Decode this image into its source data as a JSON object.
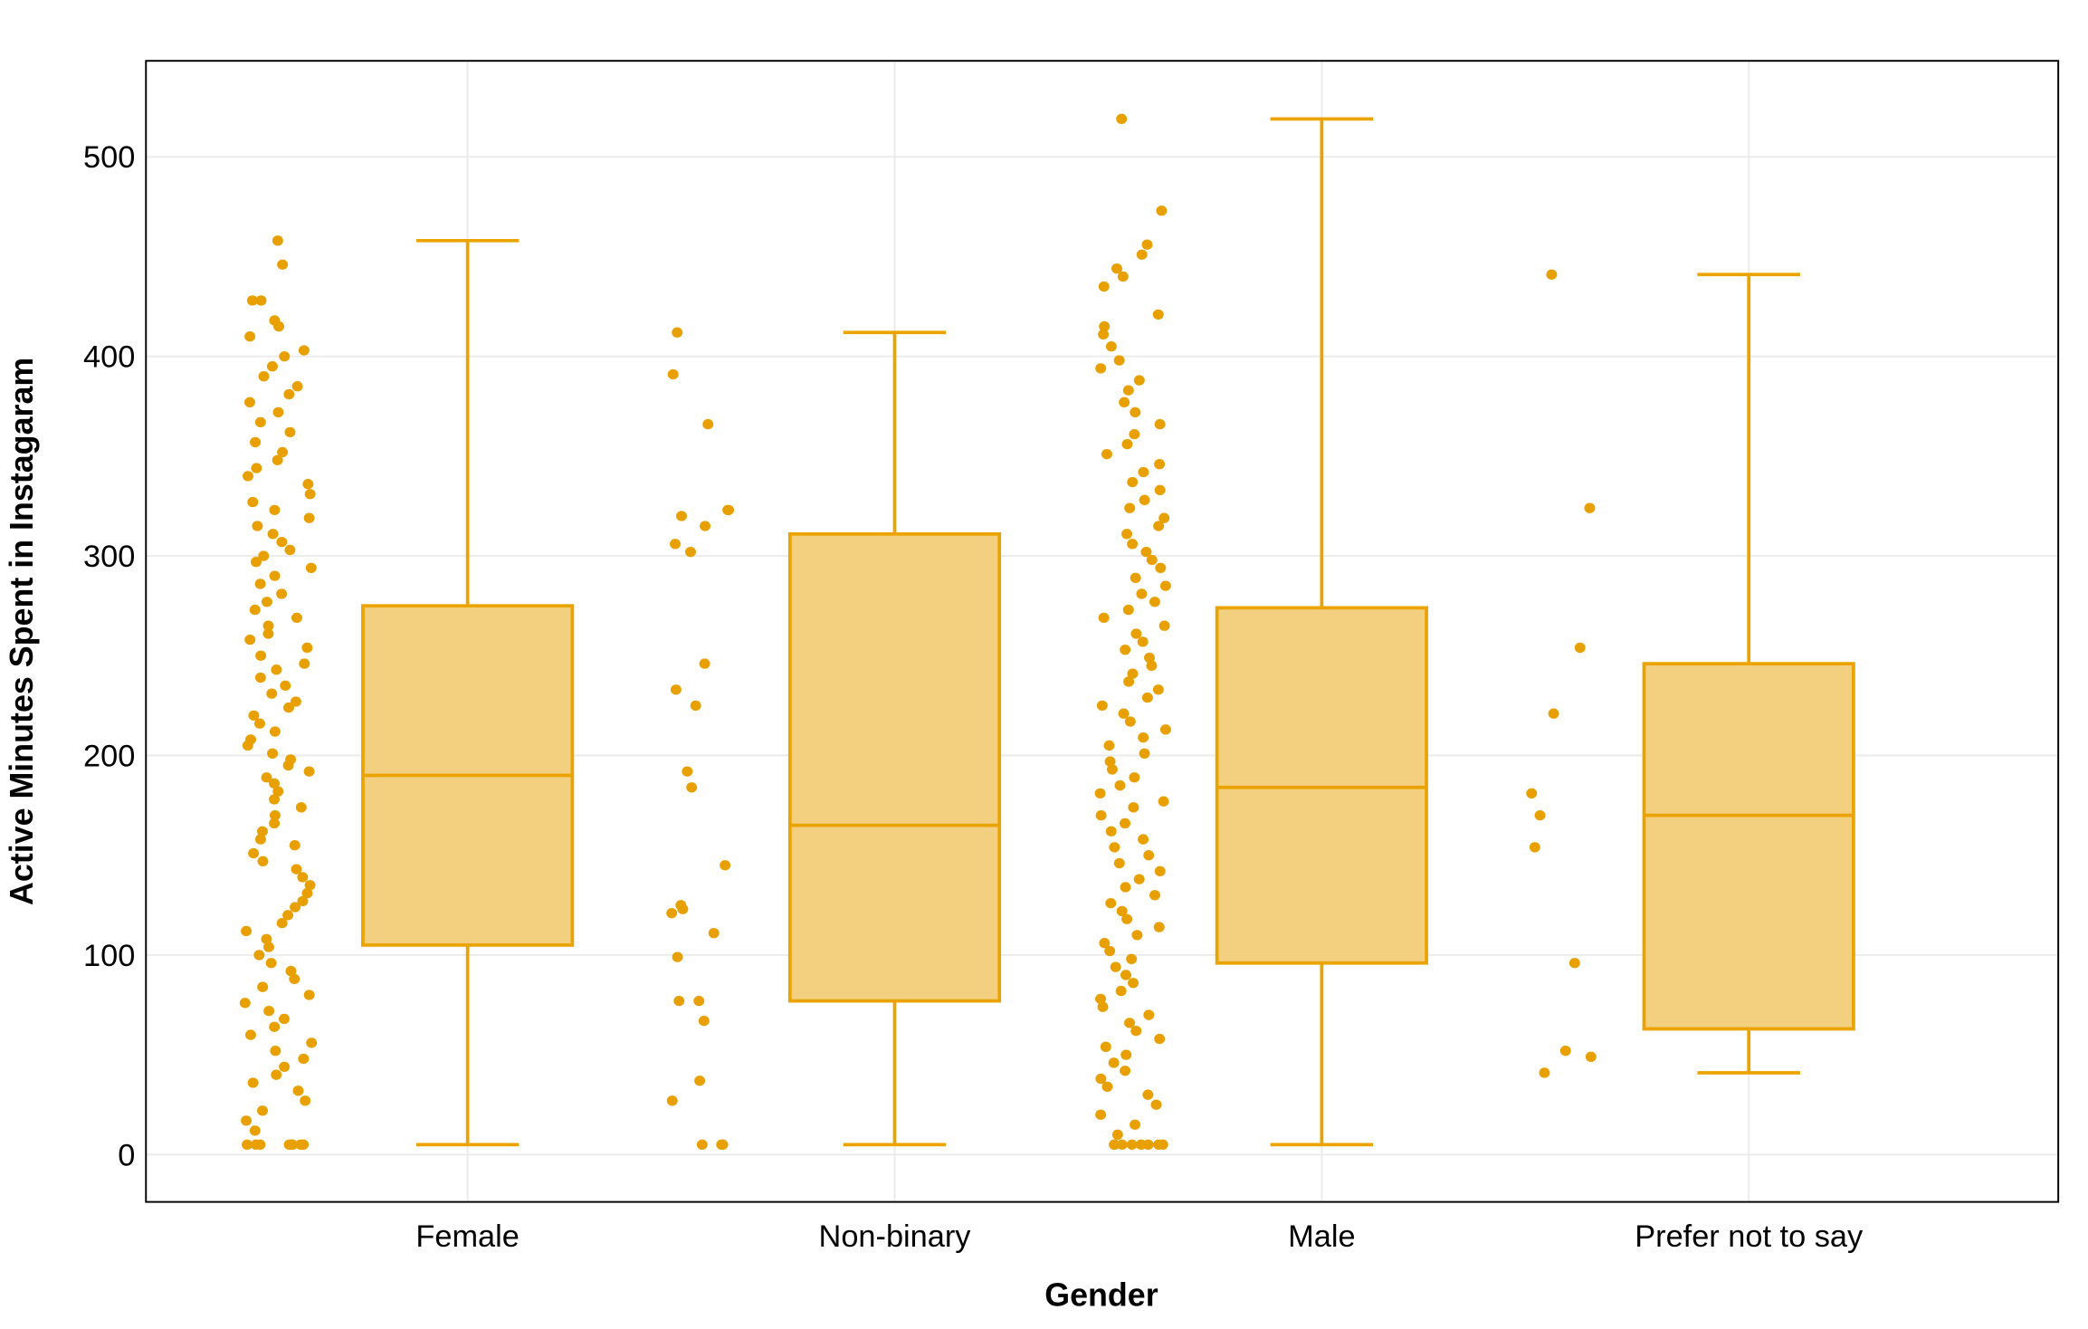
{
  "chart_data": {
    "type": "box",
    "title": "",
    "xlabel": "Gender",
    "ylabel": "Active Minutes Spent in Instagaram",
    "ylim": [
      -25,
      545
    ],
    "yticks": [
      0,
      100,
      200,
      300,
      400,
      500
    ],
    "grid": true,
    "legend": "none",
    "colors": {
      "point": "#E8A000",
      "box_fill": "#F2D080",
      "box_stroke": "#EBA300",
      "grid": "#EBEBEB"
    },
    "categories": [
      "Female",
      "Non-binary",
      "Male",
      "Prefer not to say"
    ],
    "boxes": [
      {
        "category": "Female",
        "min": 5,
        "q1": 105,
        "median": 190,
        "q3": 275,
        "max": 458
      },
      {
        "category": "Non-binary",
        "min": 5,
        "q1": 77,
        "median": 165,
        "q3": 311,
        "max": 412
      },
      {
        "category": "Male",
        "min": 5,
        "q1": 96,
        "median": 184,
        "q3": 274,
        "max": 519
      },
      {
        "category": "Prefer not to say",
        "min": 41,
        "q1": 63,
        "median": 170,
        "q3": 246,
        "max": 441
      }
    ],
    "points": {
      "Female": [
        458,
        446,
        428,
        428,
        418,
        415,
        410,
        403,
        400,
        395,
        390,
        385,
        381,
        377,
        372,
        367,
        362,
        357,
        352,
        348,
        344,
        340,
        336,
        331,
        327,
        323,
        319,
        315,
        311,
        307,
        303,
        300,
        297,
        294,
        290,
        286,
        281,
        277,
        273,
        269,
        265,
        261,
        258,
        254,
        250,
        246,
        243,
        239,
        235,
        231,
        227,
        224,
        220,
        216,
        212,
        208,
        205,
        201,
        198,
        195,
        192,
        189,
        186,
        182,
        178,
        174,
        170,
        166,
        162,
        158,
        155,
        151,
        147,
        143,
        139,
        135,
        131,
        127,
        124,
        120,
        116,
        112,
        108,
        104,
        100,
        96,
        92,
        88,
        84,
        80,
        76,
        72,
        68,
        64,
        60,
        56,
        52,
        48,
        44,
        40,
        36,
        32,
        27,
        22,
        17,
        12,
        5,
        5,
        5,
        5,
        5,
        5,
        5,
        5
      ],
      "Non-binary": [
        412,
        391,
        366,
        323,
        323,
        320,
        315,
        306,
        302,
        246,
        233,
        225,
        192,
        184,
        145,
        125,
        123,
        121,
        111,
        99,
        77,
        77,
        67,
        37,
        27,
        5,
        5,
        5
      ],
      "Male": [
        519,
        473,
        456,
        451,
        444,
        440,
        435,
        421,
        415,
        411,
        405,
        398,
        394,
        388,
        383,
        377,
        372,
        366,
        361,
        356,
        351,
        346,
        342,
        337,
        333,
        328,
        324,
        319,
        315,
        311,
        306,
        302,
        298,
        294,
        289,
        285,
        281,
        277,
        273,
        269,
        265,
        261,
        257,
        253,
        249,
        245,
        241,
        237,
        233,
        229,
        225,
        221,
        217,
        213,
        209,
        205,
        201,
        197,
        193,
        189,
        185,
        181,
        177,
        174,
        170,
        166,
        162,
        158,
        154,
        150,
        146,
        142,
        138,
        134,
        130,
        126,
        122,
        118,
        114,
        110,
        106,
        102,
        98,
        94,
        90,
        86,
        82,
        78,
        74,
        70,
        66,
        62,
        58,
        54,
        50,
        46,
        42,
        38,
        34,
        30,
        25,
        20,
        15,
        10,
        5,
        5,
        5,
        5,
        5,
        5,
        5,
        5
      ],
      "Prefer not to say": [
        441,
        324,
        254,
        221,
        181,
        170,
        154,
        96,
        52,
        49,
        41
      ]
    }
  }
}
